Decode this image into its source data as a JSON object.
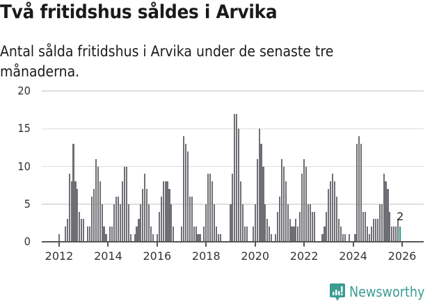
{
  "header": {
    "title": "Två fritidshus såldes i Arvika",
    "subtitle": "Antal sålda fritidshus i Arvika under de senaste tre månaderna."
  },
  "brand": {
    "name": "Newsworthy",
    "color": "#3a9c92"
  },
  "colors": {
    "bar": "#6f6e74",
    "highlight": "#1a9a8c",
    "grid": "#dedede"
  },
  "chart_data": {
    "type": "bar",
    "title": "Två fritidshus såldes i Arvika",
    "subtitle": "Antal sålda fritidshus i Arvika under de senaste tre månaderna.",
    "xlabel": "",
    "ylabel": "",
    "ylim": [
      0,
      20
    ],
    "yticks": [
      0,
      5,
      10,
      15,
      20
    ],
    "xticks": [
      "2012",
      "2014",
      "2016",
      "2018",
      "2020",
      "2022",
      "2024",
      "2026"
    ],
    "grid": true,
    "legend": "none",
    "start": "2012-01",
    "frequency": "monthly",
    "annotation": {
      "label": "2",
      "at": "last"
    },
    "values": [
      1,
      0,
      0,
      2,
      3,
      9,
      8,
      13,
      8,
      7,
      4,
      3,
      3,
      0,
      2,
      2,
      6,
      7,
      11,
      10,
      8,
      5,
      2,
      1,
      0,
      2,
      2,
      5,
      6,
      6,
      5,
      8,
      10,
      10,
      5,
      1,
      0,
      1,
      2,
      3,
      5,
      7,
      9,
      7,
      5,
      2,
      1,
      0,
      1,
      4,
      6,
      8,
      8,
      8,
      7,
      5,
      2,
      0,
      0,
      0,
      2,
      14,
      13,
      12,
      6,
      6,
      2,
      2,
      1,
      1,
      0,
      2,
      5,
      9,
      9,
      8,
      5,
      2,
      1,
      1,
      0,
      0,
      0,
      0,
      5,
      9,
      17,
      17,
      15,
      8,
      5,
      2,
      2,
      0,
      0,
      2,
      5,
      11,
      15,
      13,
      10,
      5,
      3,
      2,
      1,
      0,
      1,
      4,
      6,
      11,
      10,
      8,
      5,
      3,
      2,
      2,
      3,
      2,
      4,
      9,
      11,
      10,
      5,
      5,
      4,
      4,
      0,
      0,
      0,
      1,
      2,
      4,
      7,
      8,
      9,
      8,
      6,
      3,
      2,
      1,
      1,
      0,
      1,
      0,
      0,
      1,
      13,
      14,
      13,
      4,
      4,
      2,
      1,
      2,
      3,
      3,
      3,
      5,
      5,
      9,
      8,
      7,
      4,
      2,
      2,
      2,
      3,
      2
    ]
  }
}
